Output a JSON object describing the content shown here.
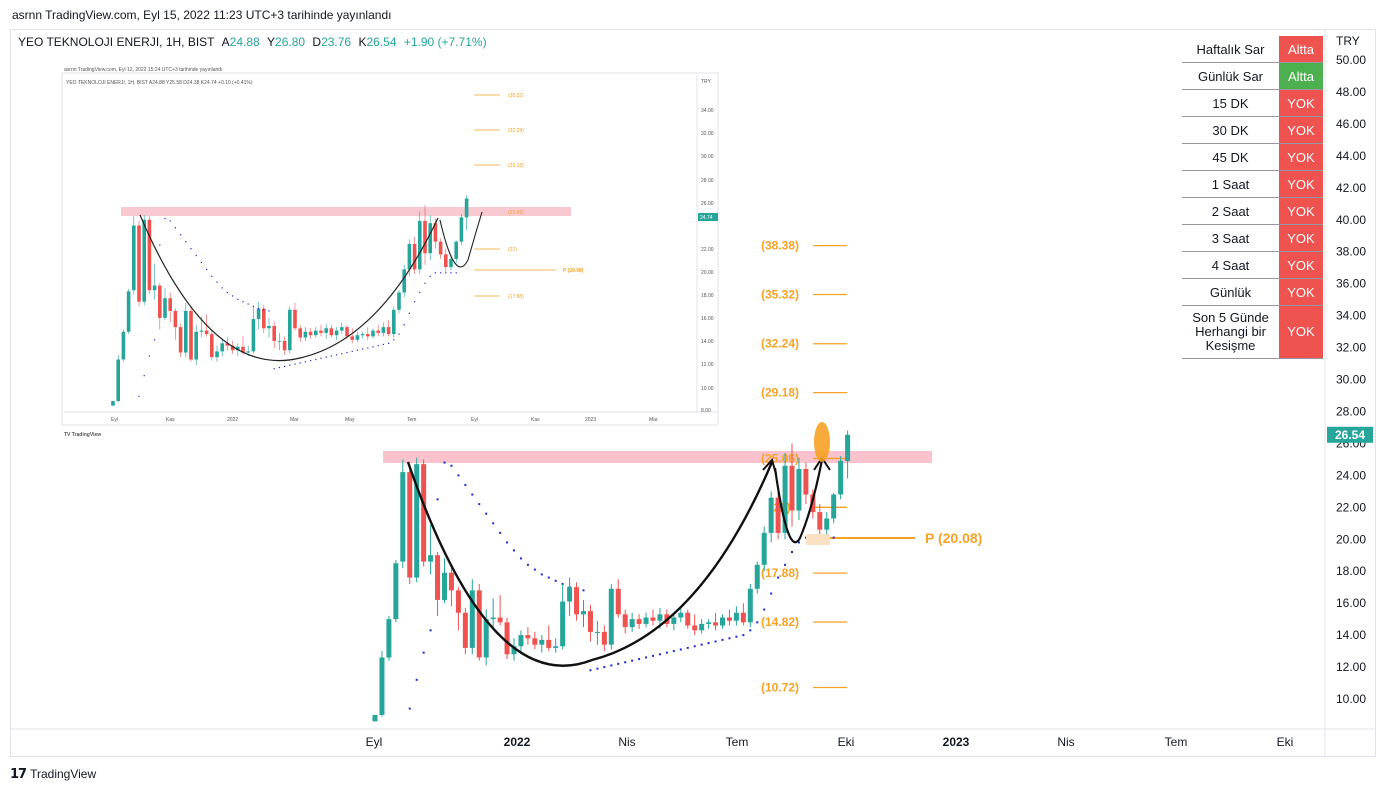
{
  "header": {
    "published": "asrnn TradingView.com, Eyl 15, 2022 11:23 UTC+3 tarihinde yayınlandı",
    "symbol": "YEO TEKNOLOJI ENERJI, 1H, BIST",
    "open": "24.88",
    "high": "26.80",
    "low": "23.76",
    "close": "26.54",
    "change": "+1.90 (+7.71%)"
  },
  "colors": {
    "up": "#26a69a",
    "down": "#ef5350",
    "fib": "#f7a226",
    "zone": "#f8bbc6",
    "sar": "#1a2bd6"
  },
  "signals": [
    {
      "label": "Haftalık Sar",
      "status": "Altta",
      "color": "#ef5350"
    },
    {
      "label": "Günlük Sar",
      "status": "Altta",
      "color": "#4caf50"
    },
    {
      "label": "15 DK",
      "status": "YOK",
      "color": "#ef5350"
    },
    {
      "label": "30 DK",
      "status": "YOK",
      "color": "#ef5350"
    },
    {
      "label": "45 DK",
      "status": "YOK",
      "color": "#ef5350"
    },
    {
      "label": "1 Saat",
      "status": "YOK",
      "color": "#ef5350"
    },
    {
      "label": "2 Saat",
      "status": "YOK",
      "color": "#ef5350"
    },
    {
      "label": "3 Saat",
      "status": "YOK",
      "color": "#ef5350"
    },
    {
      "label": "4 Saat",
      "status": "YOK",
      "color": "#ef5350"
    },
    {
      "label": "Günlük",
      "status": "YOK",
      "color": "#ef5350"
    },
    {
      "label": "Son 5 Günde Herhangi bir Kesişme",
      "status": "YOK",
      "color": "#ef5350"
    }
  ],
  "chart_data": {
    "type": "candlestick",
    "currency_label": "TRY",
    "y_ticks": [
      "50.00",
      "48.00",
      "46.00",
      "44.00",
      "42.00",
      "40.00",
      "38.00",
      "36.00",
      "34.00",
      "32.00",
      "30.00",
      "28.00",
      "26.00",
      "24.00",
      "22.00",
      "20.00",
      "18.00",
      "16.00",
      "14.00",
      "12.00",
      "10.00"
    ],
    "ylim": [
      8.6,
      51.5
    ],
    "x_ticks": [
      "Eyl",
      "2022",
      "Nis",
      "Tem",
      "Eki",
      "2023",
      "Nis",
      "Tem",
      "Eki"
    ],
    "last_price": "26.54",
    "fib_levels": [
      "38.38",
      "35.32",
      "32.24",
      "29.18",
      "25.06",
      "22",
      "17.88",
      "14.82",
      "10.72"
    ],
    "pivot_label": "P (20.08)",
    "pivot_value": 20.08,
    "resistance_zone": [
      24.9,
      25.5
    ],
    "candles": [
      [
        8.6,
        9.0,
        8.6,
        9.0
      ],
      [
        9.0,
        13.0,
        8.9,
        12.6
      ],
      [
        12.6,
        15.2,
        12.4,
        15.0
      ],
      [
        15.0,
        18.7,
        14.8,
        18.5
      ],
      [
        18.6,
        25.0,
        18.2,
        24.2
      ],
      [
        24.2,
        24.6,
        17.2,
        17.6
      ],
      [
        17.6,
        25.1,
        17.3,
        24.7
      ],
      [
        24.7,
        25.0,
        18.3,
        18.6
      ],
      [
        18.6,
        20.9,
        17.8,
        19.0
      ],
      [
        19.0,
        19.2,
        15.2,
        16.2
      ],
      [
        16.2,
        18.8,
        16.0,
        17.9
      ],
      [
        17.9,
        18.4,
        15.8,
        16.8
      ],
      [
        16.8,
        17.0,
        14.3,
        15.4
      ],
      [
        15.4,
        15.7,
        12.8,
        13.2
      ],
      [
        13.2,
        17.5,
        12.8,
        16.8
      ],
      [
        16.8,
        17.2,
        12.4,
        12.6
      ],
      [
        12.6,
        15.6,
        12.1,
        15.0
      ],
      [
        15.0,
        16.3,
        14.5,
        15.1
      ],
      [
        15.1,
        16.5,
        14.6,
        14.8
      ],
      [
        14.8,
        15.1,
        12.5,
        12.8
      ],
      [
        12.8,
        13.8,
        12.4,
        13.3
      ],
      [
        13.3,
        14.3,
        12.9,
        14.0
      ],
      [
        14.0,
        14.5,
        13.4,
        13.8
      ],
      [
        13.8,
        14.2,
        13.1,
        13.4
      ],
      [
        13.4,
        14.0,
        12.9,
        13.7
      ],
      [
        13.7,
        14.6,
        13.0,
        13.2
      ],
      [
        13.2,
        13.8,
        12.9,
        13.3
      ],
      [
        13.3,
        17.2,
        13.1,
        16.1
      ],
      [
        16.1,
        17.6,
        15.2,
        17.0
      ],
      [
        17.0,
        17.3,
        14.9,
        15.3
      ],
      [
        15.3,
        16.2,
        14.5,
        15.5
      ],
      [
        15.5,
        15.9,
        13.6,
        14.2
      ],
      [
        14.2,
        14.9,
        13.4,
        14.2
      ],
      [
        14.2,
        14.6,
        13.0,
        13.4
      ],
      [
        13.4,
        17.2,
        13.1,
        16.9
      ],
      [
        16.9,
        17.5,
        15.1,
        15.3
      ],
      [
        15.3,
        15.6,
        14.1,
        14.5
      ],
      [
        14.5,
        15.4,
        14.2,
        15.0
      ],
      [
        15.0,
        15.3,
        14.4,
        14.7
      ],
      [
        14.7,
        15.4,
        14.5,
        15.1
      ],
      [
        15.1,
        15.6,
        14.6,
        14.9
      ],
      [
        14.9,
        15.7,
        14.4,
        15.3
      ],
      [
        15.3,
        15.6,
        14.5,
        14.7
      ],
      [
        14.7,
        15.4,
        14.3,
        15.1
      ],
      [
        15.1,
        15.8,
        14.8,
        15.4
      ],
      [
        15.4,
        15.6,
        14.4,
        14.6
      ],
      [
        14.6,
        15.3,
        14.0,
        14.3
      ],
      [
        14.3,
        15.0,
        14.1,
        14.7
      ],
      [
        14.7,
        15.0,
        14.4,
        14.8
      ],
      [
        14.8,
        15.4,
        14.3,
        14.6
      ],
      [
        14.6,
        15.3,
        14.4,
        15.1
      ],
      [
        15.1,
        15.6,
        14.6,
        14.9
      ],
      [
        14.9,
        15.8,
        14.6,
        15.4
      ],
      [
        15.4,
        16.0,
        14.6,
        14.8
      ],
      [
        14.8,
        17.2,
        14.5,
        16.9
      ],
      [
        16.9,
        18.6,
        16.6,
        18.4
      ],
      [
        18.4,
        20.8,
        18.0,
        20.4
      ],
      [
        20.4,
        23.0,
        19.8,
        22.6
      ],
      [
        22.6,
        23.2,
        20.0,
        20.4
      ],
      [
        20.4,
        25.4,
        20.0,
        24.6
      ],
      [
        24.6,
        26.0,
        20.8,
        21.8
      ],
      [
        21.8,
        25.1,
        21.2,
        24.4
      ],
      [
        24.4,
        24.8,
        22.2,
        22.8
      ],
      [
        22.8,
        23.1,
        21.3,
        21.7
      ],
      [
        21.7,
        22.2,
        20.2,
        20.6
      ],
      [
        20.6,
        21.7,
        20.3,
        21.3
      ],
      [
        21.3,
        22.9,
        21.0,
        22.8
      ],
      [
        22.8,
        25.2,
        22.5,
        24.9
      ],
      [
        24.9,
        26.8,
        23.8,
        26.54
      ]
    ],
    "parabolic_sar": [
      [
        5,
        9.4
      ],
      [
        6,
        11.2
      ],
      [
        7,
        12.9
      ],
      [
        8,
        14.3
      ],
      [
        9,
        22.5
      ],
      [
        10,
        24.8
      ],
      [
        11,
        24.6
      ],
      [
        12,
        24.0
      ],
      [
        13,
        23.4
      ],
      [
        14,
        22.8
      ],
      [
        15,
        22.2
      ],
      [
        16,
        21.6
      ],
      [
        17,
        21.0
      ],
      [
        18,
        20.4
      ],
      [
        19,
        19.8
      ],
      [
        20,
        19.3
      ],
      [
        21,
        18.8
      ],
      [
        22,
        18.4
      ],
      [
        23,
        18.1
      ],
      [
        24,
        17.8
      ],
      [
        25,
        17.6
      ],
      [
        26,
        17.4
      ],
      [
        27,
        17.2
      ],
      [
        28,
        17.0
      ],
      [
        29,
        16.9
      ],
      [
        30,
        16.8
      ],
      [
        31,
        11.8
      ],
      [
        32,
        11.9
      ],
      [
        33,
        12.0
      ],
      [
        34,
        12.1
      ],
      [
        35,
        12.2
      ],
      [
        36,
        12.3
      ],
      [
        37,
        12.4
      ],
      [
        38,
        12.5
      ],
      [
        39,
        12.6
      ],
      [
        40,
        12.7
      ],
      [
        41,
        12.8
      ],
      [
        42,
        12.9
      ],
      [
        43,
        13.0
      ],
      [
        44,
        13.1
      ],
      [
        45,
        13.2
      ],
      [
        46,
        13.3
      ],
      [
        47,
        13.4
      ],
      [
        48,
        13.5
      ],
      [
        49,
        13.6
      ],
      [
        50,
        13.7
      ],
      [
        51,
        13.8
      ],
      [
        52,
        13.9
      ],
      [
        53,
        14.0
      ],
      [
        54,
        14.3
      ],
      [
        55,
        14.8
      ],
      [
        56,
        15.6
      ],
      [
        57,
        16.6
      ],
      [
        58,
        17.6
      ],
      [
        59,
        18.4
      ],
      [
        60,
        19.2
      ],
      [
        61,
        19.8
      ],
      [
        62,
        20.1
      ],
      [
        63,
        20.1
      ],
      [
        64,
        20.1
      ],
      [
        65,
        20.1
      ],
      [
        66,
        20.1
      ]
    ]
  }
}
